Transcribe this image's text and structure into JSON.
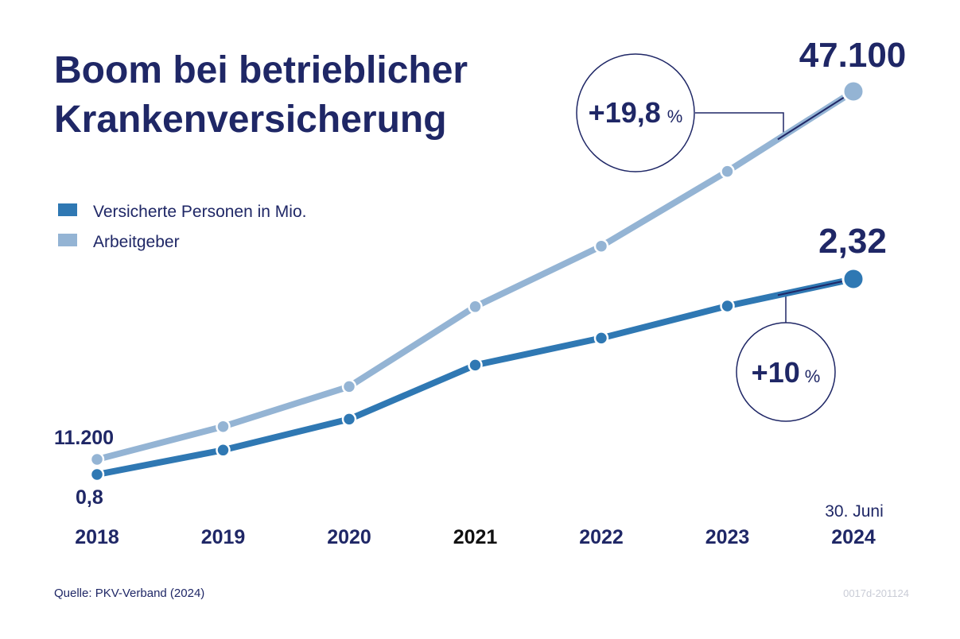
{
  "title_line1": "Boom bei betrieblicher",
  "title_line2": "Krankenversicherung",
  "legend": {
    "item1": "Versicherte Personen in Mio.",
    "item2": "Arbeitgeber"
  },
  "annotations": {
    "arbeitgeber_start": "11.200",
    "arbeitgeber_end": "47.100",
    "personen_start": "0,8",
    "personen_end": "2,32",
    "arbeitgeber_growth_num": "+19,8",
    "arbeitgeber_growth_unit": "%",
    "personen_growth_num": "+10",
    "personen_growth_unit": "%",
    "last_date_note": "30. Juni"
  },
  "source": "Quelle: PKV-Verband (2024)",
  "code": "0017d-201124",
  "colors": {
    "dark": "#1f2766",
    "personen": "#2f78b3",
    "arbeitgeber": "#94b4d4"
  },
  "chart_data": {
    "type": "line",
    "title": "Boom bei betrieblicher Krankenversicherung",
    "categories": [
      "2018",
      "2019",
      "2020",
      "2021",
      "2022",
      "2023",
      "2024"
    ],
    "series": [
      {
        "name": "Versicherte Personen in Mio.",
        "values": [
          0.8,
          0.99,
          1.23,
          1.65,
          1.86,
          2.11,
          2.32
        ]
      },
      {
        "name": "Arbeitgeber",
        "values": [
          11200,
          14400,
          18300,
          26100,
          32000,
          39300,
          47100
        ]
      }
    ],
    "legend_position": "top-left",
    "grid": false
  }
}
